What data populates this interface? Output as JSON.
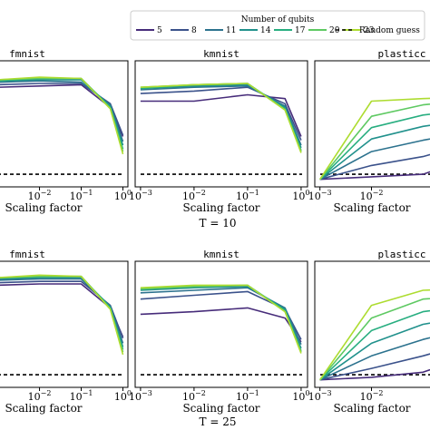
{
  "legend": {
    "title": "Number of qubits",
    "entries": [
      "5",
      "8",
      "11",
      "14",
      "17",
      "20",
      "23"
    ],
    "random_guess_label": "Random guess",
    "colors": [
      "#472c7a",
      "#3b528b",
      "#2c728e",
      "#21918c",
      "#28ae80",
      "#5ec962",
      "#addc30"
    ],
    "random_guess_color": "#000000"
  },
  "x_axis_label": "Scaling factor",
  "row_labels": [
    "T = 10",
    "T = 25"
  ],
  "chart_data": [
    {
      "type": "line",
      "title": "fmnist",
      "x": [
        0.001,
        0.01,
        0.1,
        0.5,
        1.0
      ],
      "x_scale": "log",
      "xticklabels": [
        "10^-2",
        "10^-1",
        "10^0"
      ],
      "xlabel": "Scaling factor",
      "ylim": [
        0,
        1
      ],
      "random_guess": 0.1,
      "series": [
        {
          "name": "5",
          "values": [
            0.79,
            0.8,
            0.81,
            0.63,
            0.4
          ]
        },
        {
          "name": "8",
          "values": [
            0.81,
            0.82,
            0.82,
            0.66,
            0.41
          ]
        },
        {
          "name": "11",
          "values": [
            0.83,
            0.84,
            0.83,
            0.65,
            0.36
          ]
        },
        {
          "name": "14",
          "values": [
            0.84,
            0.85,
            0.85,
            0.64,
            0.33
          ]
        },
        {
          "name": "17",
          "values": [
            0.84,
            0.86,
            0.86,
            0.63,
            0.3
          ]
        },
        {
          "name": "20",
          "values": [
            0.85,
            0.86,
            0.86,
            0.62,
            0.28
          ]
        },
        {
          "name": "23",
          "values": [
            0.85,
            0.87,
            0.86,
            0.62,
            0.26
          ]
        }
      ]
    },
    {
      "type": "line",
      "title": "kmnist",
      "x": [
        0.001,
        0.01,
        0.1,
        0.5,
        1.0
      ],
      "x_scale": "log",
      "xticklabels": [
        "10^-3",
        "10^-2",
        "10^-1",
        "10^0"
      ],
      "xlabel": "Scaling factor",
      "ylim": [
        0,
        1
      ],
      "random_guess": 0.1,
      "series": [
        {
          "name": "5",
          "values": [
            0.68,
            0.68,
            0.73,
            0.7,
            0.4
          ]
        },
        {
          "name": "8",
          "values": [
            0.74,
            0.76,
            0.79,
            0.66,
            0.37
          ]
        },
        {
          "name": "11",
          "values": [
            0.77,
            0.79,
            0.8,
            0.64,
            0.33
          ]
        },
        {
          "name": "14",
          "values": [
            0.78,
            0.8,
            0.81,
            0.63,
            0.31
          ]
        },
        {
          "name": "17",
          "values": [
            0.78,
            0.81,
            0.82,
            0.62,
            0.29
          ]
        },
        {
          "name": "20",
          "values": [
            0.79,
            0.81,
            0.82,
            0.61,
            0.28
          ]
        },
        {
          "name": "23",
          "values": [
            0.79,
            0.81,
            0.82,
            0.61,
            0.27
          ]
        }
      ]
    },
    {
      "type": "line",
      "title": "plasticc",
      "x": [
        0.001,
        0.01,
        0.1,
        0.5,
        1.0
      ],
      "x_scale": "log",
      "xticklabels": [
        "10^-3",
        "10^-2"
      ],
      "xlabel": "Scaling factor",
      "ylim": [
        0,
        1
      ],
      "random_guess": 0.1,
      "series": [
        {
          "name": "5",
          "values": [
            0.06,
            0.08,
            0.1,
            0.2,
            0.26
          ]
        },
        {
          "name": "8",
          "values": [
            0.06,
            0.17,
            0.24,
            0.32,
            0.36
          ]
        },
        {
          "name": "11",
          "values": [
            0.06,
            0.28,
            0.37,
            0.42,
            0.45
          ]
        },
        {
          "name": "14",
          "values": [
            0.06,
            0.38,
            0.48,
            0.52,
            0.55
          ]
        },
        {
          "name": "17",
          "values": [
            0.06,
            0.47,
            0.57,
            0.6,
            0.62
          ]
        },
        {
          "name": "20",
          "values": [
            0.06,
            0.56,
            0.65,
            0.68,
            0.7
          ]
        },
        {
          "name": "23",
          "values": [
            0.06,
            0.68,
            0.7,
            0.71,
            0.72
          ]
        }
      ]
    },
    {
      "type": "line",
      "title": "fmnist",
      "x": [
        0.001,
        0.01,
        0.1,
        0.5,
        1.0
      ],
      "x_scale": "log",
      "xticklabels": [
        "10^-2",
        "10^-1",
        "10^0"
      ],
      "xlabel": "Scaling factor",
      "ylim": [
        0,
        1
      ],
      "random_guess": 0.1,
      "series": [
        {
          "name": "5",
          "values": [
            0.81,
            0.82,
            0.82,
            0.63,
            0.4
          ]
        },
        {
          "name": "8",
          "values": [
            0.83,
            0.84,
            0.84,
            0.65,
            0.39
          ]
        },
        {
          "name": "11",
          "values": [
            0.85,
            0.86,
            0.86,
            0.64,
            0.35
          ]
        },
        {
          "name": "14",
          "values": [
            0.86,
            0.87,
            0.87,
            0.64,
            0.32
          ]
        },
        {
          "name": "17",
          "values": [
            0.87,
            0.88,
            0.88,
            0.63,
            0.3
          ]
        },
        {
          "name": "20",
          "values": [
            0.87,
            0.88,
            0.88,
            0.62,
            0.28
          ]
        },
        {
          "name": "23",
          "values": [
            0.87,
            0.89,
            0.88,
            0.62,
            0.26
          ]
        }
      ]
    },
    {
      "type": "line",
      "title": "kmnist",
      "x": [
        0.001,
        0.01,
        0.1,
        0.5,
        1.0
      ],
      "x_scale": "log",
      "xticklabels": [
        "10^-3",
        "10^-2",
        "10^-1",
        "10^0"
      ],
      "xlabel": "Scaling factor",
      "ylim": [
        0,
        1
      ],
      "random_guess": 0.1,
      "series": [
        {
          "name": "5",
          "values": [
            0.58,
            0.6,
            0.63,
            0.55,
            0.36
          ]
        },
        {
          "name": "8",
          "values": [
            0.7,
            0.73,
            0.76,
            0.62,
            0.38
          ]
        },
        {
          "name": "11",
          "values": [
            0.75,
            0.77,
            0.79,
            0.63,
            0.34
          ]
        },
        {
          "name": "14",
          "values": [
            0.77,
            0.79,
            0.8,
            0.62,
            0.31
          ]
        },
        {
          "name": "17",
          "values": [
            0.78,
            0.8,
            0.81,
            0.61,
            0.29
          ]
        },
        {
          "name": "20",
          "values": [
            0.78,
            0.8,
            0.81,
            0.6,
            0.28
          ]
        },
        {
          "name": "23",
          "values": [
            0.79,
            0.81,
            0.81,
            0.6,
            0.27
          ]
        }
      ]
    },
    {
      "type": "line",
      "title": "plasticc",
      "x": [
        0.001,
        0.01,
        0.1,
        0.5,
        1.0
      ],
      "x_scale": "log",
      "xticklabels": [
        "10^-3",
        "10^-2"
      ],
      "xlabel": "Scaling factor",
      "ylim": [
        0,
        1
      ],
      "random_guess": 0.1,
      "series": [
        {
          "name": "5",
          "values": [
            0.06,
            0.08,
            0.12,
            0.22,
            0.3
          ]
        },
        {
          "name": "8",
          "values": [
            0.06,
            0.15,
            0.25,
            0.33,
            0.38
          ]
        },
        {
          "name": "11",
          "values": [
            0.06,
            0.25,
            0.38,
            0.45,
            0.48
          ]
        },
        {
          "name": "14",
          "values": [
            0.06,
            0.35,
            0.5,
            0.55,
            0.58
          ]
        },
        {
          "name": "17",
          "values": [
            0.06,
            0.45,
            0.6,
            0.64,
            0.66
          ]
        },
        {
          "name": "20",
          "values": [
            0.06,
            0.55,
            0.7,
            0.72,
            0.73
          ]
        },
        {
          "name": "23",
          "values": [
            0.06,
            0.65,
            0.77,
            0.78,
            0.79
          ]
        }
      ]
    }
  ]
}
